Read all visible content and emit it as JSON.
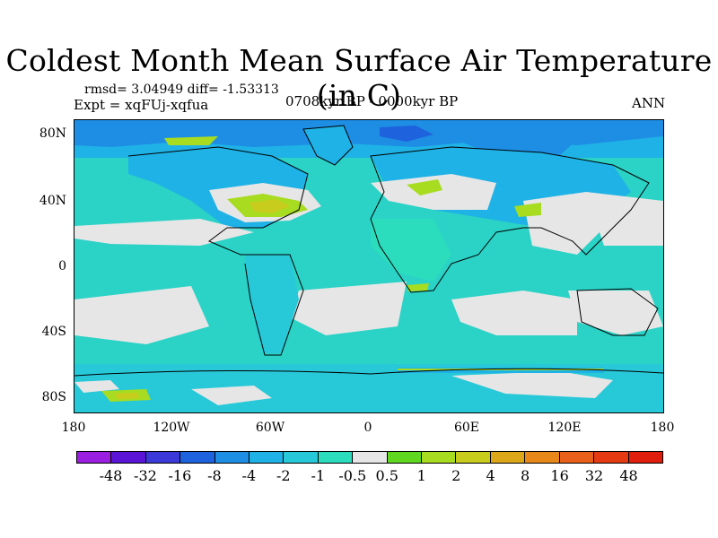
{
  "title": "Coldest Month Mean Surface Air Temperature (in C)",
  "stats_line": "rmsd= 3.04949 diff= -1.53313",
  "experiment": "Expt = xqFUj-xqfua",
  "period": "0708kyr BP - 0000kyr BP",
  "season": "ANN",
  "map": {
    "projection": "cylindrical equidistant",
    "lat_labels": [
      "80N",
      "40N",
      "0",
      "40S",
      "80S"
    ],
    "lon_labels": [
      "180",
      "120W",
      "60W",
      "0",
      "60E",
      "120E",
      "180"
    ],
    "features": [
      "coastlines",
      "filled-contours"
    ]
  },
  "colorbar": {
    "labels": [
      "-48",
      "-32",
      "-16",
      "-8",
      "-4",
      "-2",
      "-1",
      "-0.5",
      "0.5",
      "1",
      "2",
      "4",
      "8",
      "16",
      "32",
      "48"
    ],
    "colors": [
      "#9a1fe0",
      "#5b14d6",
      "#3b39d8",
      "#1e62dd",
      "#1d8ee4",
      "#1fb2e6",
      "#27c8d8",
      "#2bddbd",
      "#e6e6e6",
      "#5fd620",
      "#a7dc20",
      "#c8cc1c",
      "#dca81a",
      "#e8881a",
      "#e8601a",
      "#e63a12",
      "#e01e0e"
    ]
  }
}
